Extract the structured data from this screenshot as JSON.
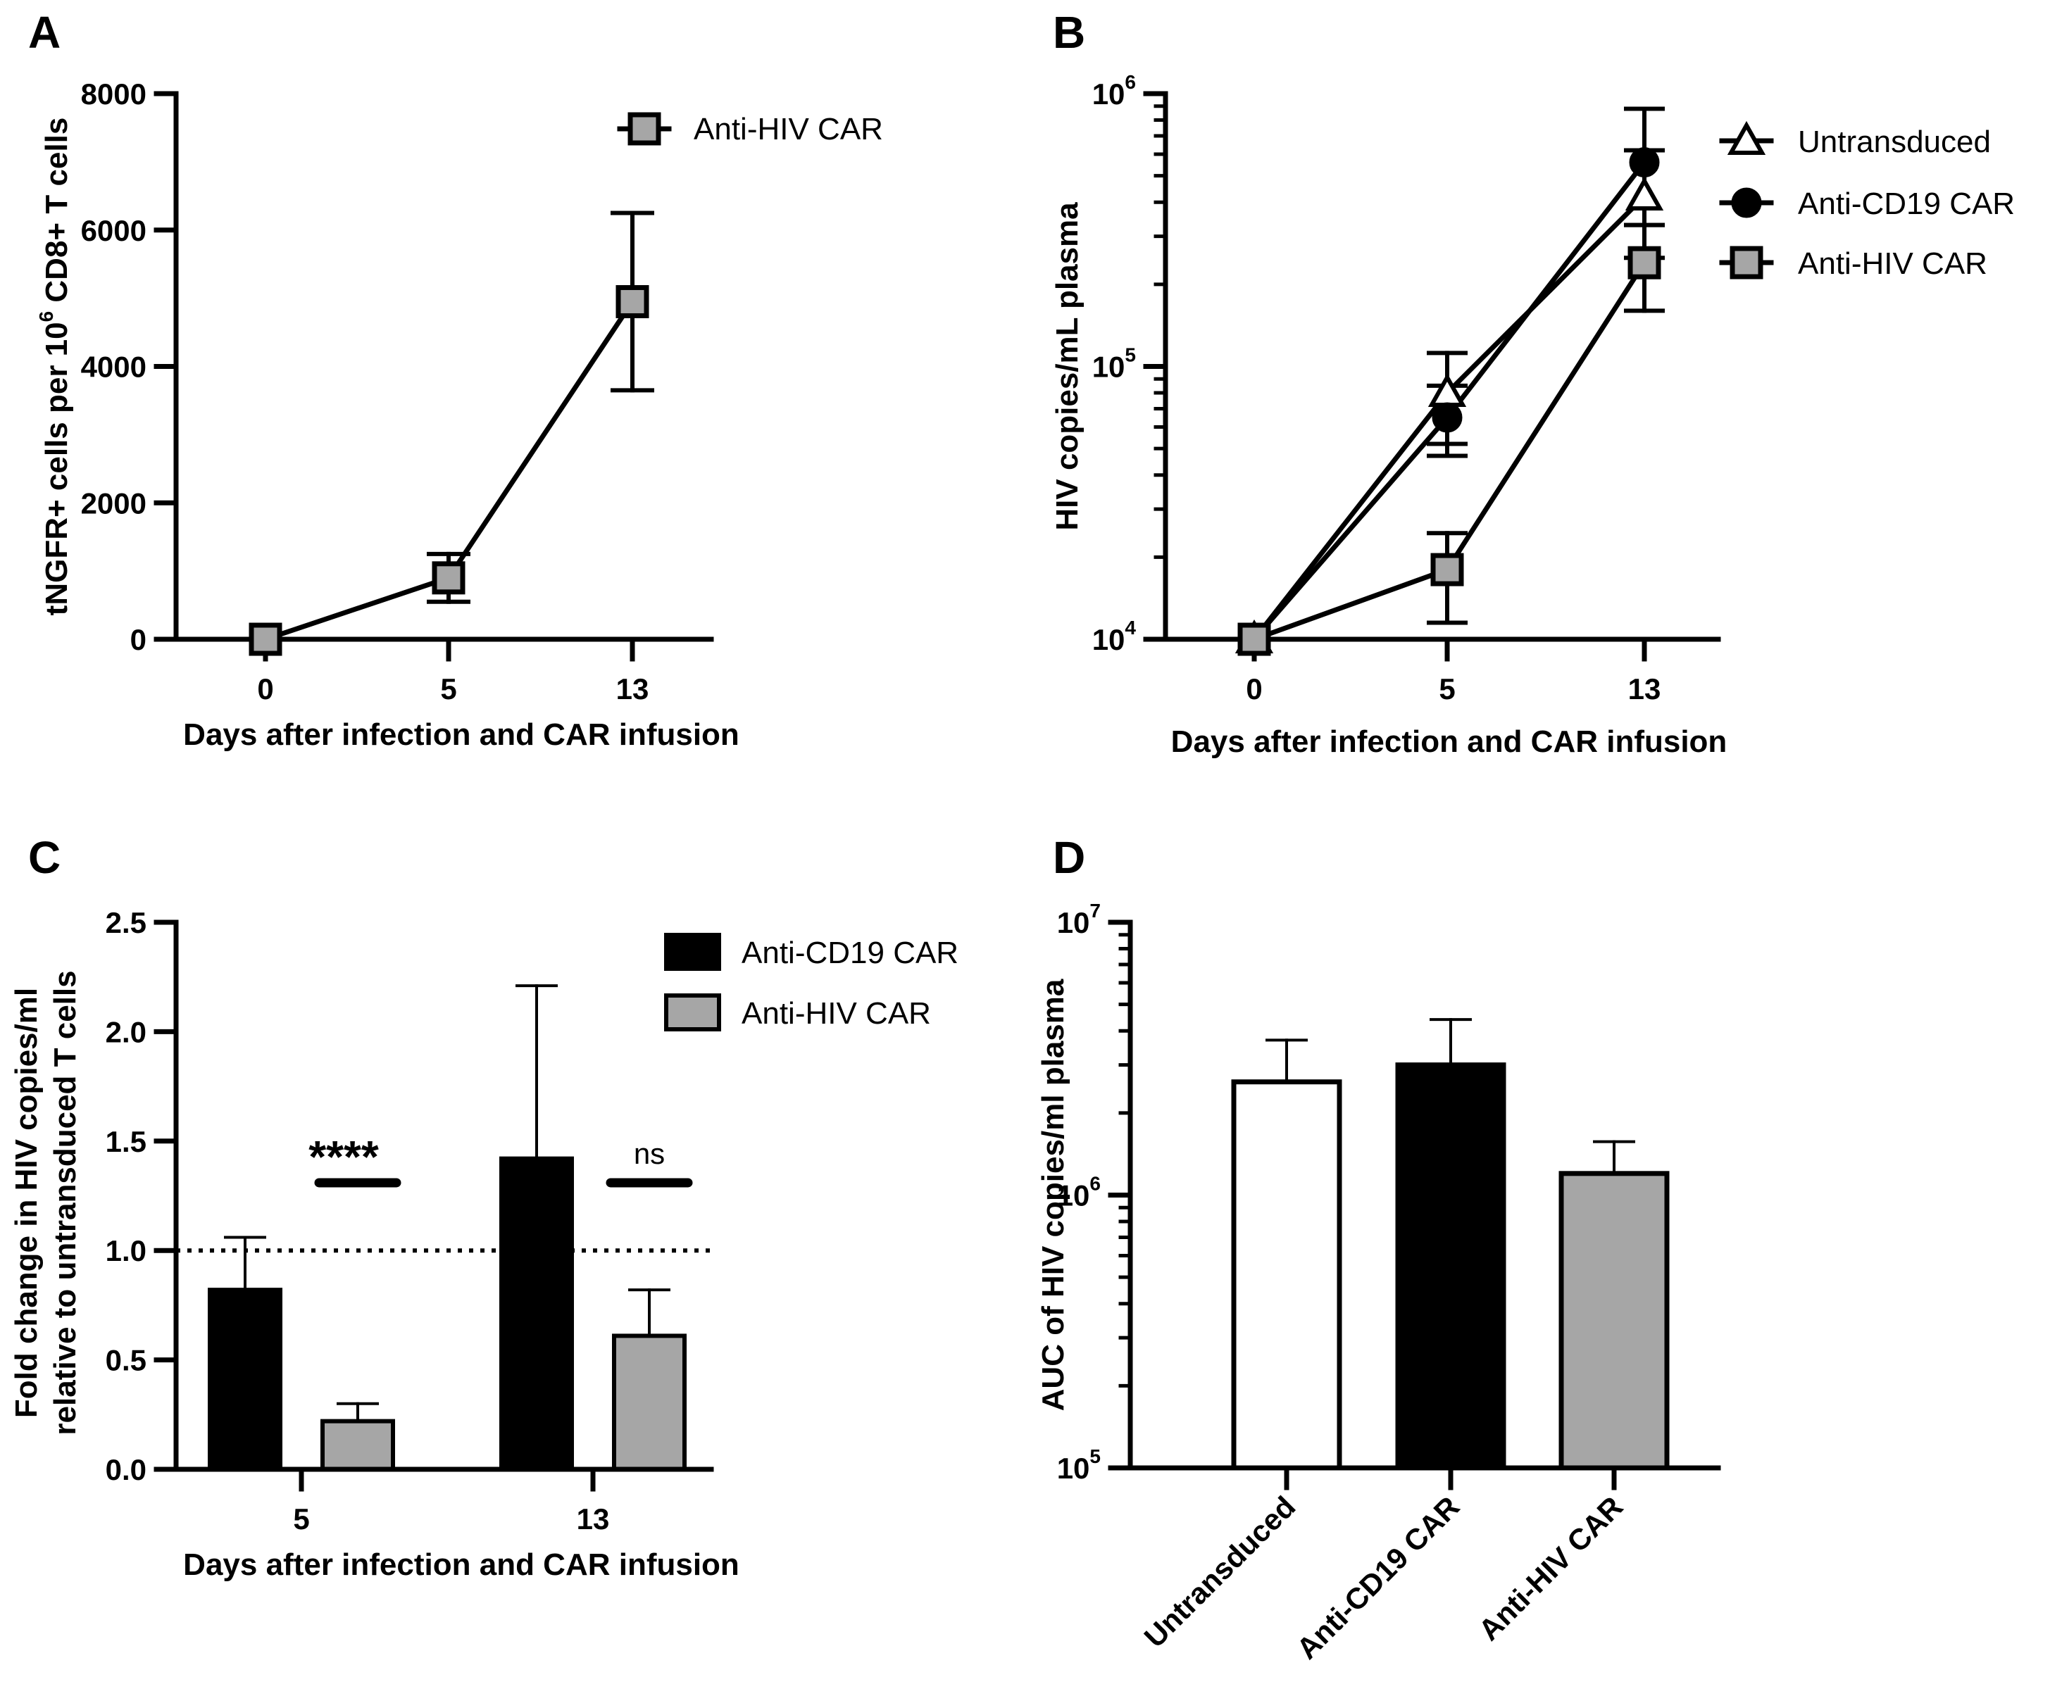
{
  "colors": {
    "black": "#000000",
    "gray": "#a6a6a6",
    "white": "#ffffff"
  },
  "panels": [
    {
      "letter": "A",
      "chart_data": {
        "type": "line",
        "x_categories": [
          "0",
          "5",
          "13"
        ],
        "xlabel": "Days after infection and CAR infusion",
        "ylabel": {
          "pre": "tNGFR+ cells per 10",
          "sup": "6",
          "post": " CD8+ T cells"
        },
        "ylim": [
          0,
          8000
        ],
        "yticks": [
          "0",
          "2000",
          "4000",
          "6000",
          "8000"
        ],
        "legend_position": "top-right",
        "series": [
          {
            "name": "Anti-HIV CAR",
            "marker": "square",
            "fill": "#a6a6a6",
            "y": [
              0,
              900,
              4950
            ],
            "err": [
              30,
              350,
              1300
            ]
          }
        ]
      }
    },
    {
      "letter": "B",
      "chart_data": {
        "type": "line",
        "y_scale": "log",
        "x_categories": [
          "0",
          "5",
          "13"
        ],
        "xlabel": "Days after infection and CAR infusion",
        "ylabel": "HIV copies/mL plasma",
        "ylim": [
          10000,
          1000000
        ],
        "yticks": [
          {
            "base": "10",
            "exp": "4"
          },
          {
            "base": "10",
            "exp": "5"
          },
          {
            "base": "10",
            "exp": "6"
          }
        ],
        "legend_position": "top-right",
        "series": [
          {
            "name": "Untransduced",
            "marker": "triangle-open",
            "fill": "#ffffff",
            "y": [
              10000,
              80000,
              420000
            ],
            "err_up": [
              10000,
              112000,
              620000
            ],
            "err_down": [
              10000,
              52000,
              250000
            ]
          },
          {
            "name": "Anti-CD19 CAR",
            "marker": "circle",
            "fill": "#000000",
            "y": [
              10000,
              65000,
              560000
            ],
            "err_up": [
              10000,
              85000,
              880000
            ],
            "err_down": [
              10000,
              47000,
              330000
            ]
          },
          {
            "name": "Anti-HIV CAR",
            "marker": "square",
            "fill": "#a6a6a6",
            "y": [
              10000,
              18000,
              240000
            ],
            "err_up": [
              10000,
              24500,
              330000
            ],
            "err_down": [
              10000,
              11500,
              160000
            ]
          }
        ]
      }
    },
    {
      "letter": "C",
      "chart_data": {
        "type": "bar",
        "categories": [
          "5",
          "13"
        ],
        "xlabel": "Days after infection and CAR infusion",
        "ylabel_lines": [
          "Fold change in HIV copies/ml",
          "relative to untransduced T cells"
        ],
        "ylim": [
          0,
          2.5
        ],
        "yticks": [
          "0.0",
          "0.5",
          "1.0",
          "1.5",
          "2.0",
          "2.5"
        ],
        "reference_line": 1.0,
        "legend_position": "top-right",
        "series": [
          {
            "name": "Anti-CD19 CAR",
            "fill": "#000000",
            "values": [
              0.82,
              1.42
            ],
            "err": [
              0.24,
              0.79
            ]
          },
          {
            "name": "Anti-HIV CAR",
            "fill": "#a6a6a6",
            "values": [
              0.22,
              0.61
            ],
            "err": [
              0.08,
              0.21
            ]
          }
        ],
        "annotations": [
          {
            "category": "5",
            "text": "****",
            "y": 1.3
          },
          {
            "category": "13",
            "text": "ns",
            "y": 1.3
          }
        ]
      }
    },
    {
      "letter": "D",
      "chart_data": {
        "type": "bar",
        "y_scale": "log",
        "categories": [
          "Untransduced",
          "Anti-CD19 CAR",
          "Anti-HIV CAR"
        ],
        "ylabel": "AUC of HIV copies/ml plasma",
        "ylim": [
          100000,
          10000000
        ],
        "yticks": [
          {
            "base": "10",
            "exp": "5"
          },
          {
            "base": "10",
            "exp": "6"
          },
          {
            "base": "10",
            "exp": "7"
          }
        ],
        "values": [
          2600000,
          3000000,
          1200000
        ],
        "err_up": [
          3700000,
          4400000,
          1570000
        ],
        "fills": [
          "#ffffff",
          "#000000",
          "#a6a6a6"
        ]
      }
    }
  ]
}
